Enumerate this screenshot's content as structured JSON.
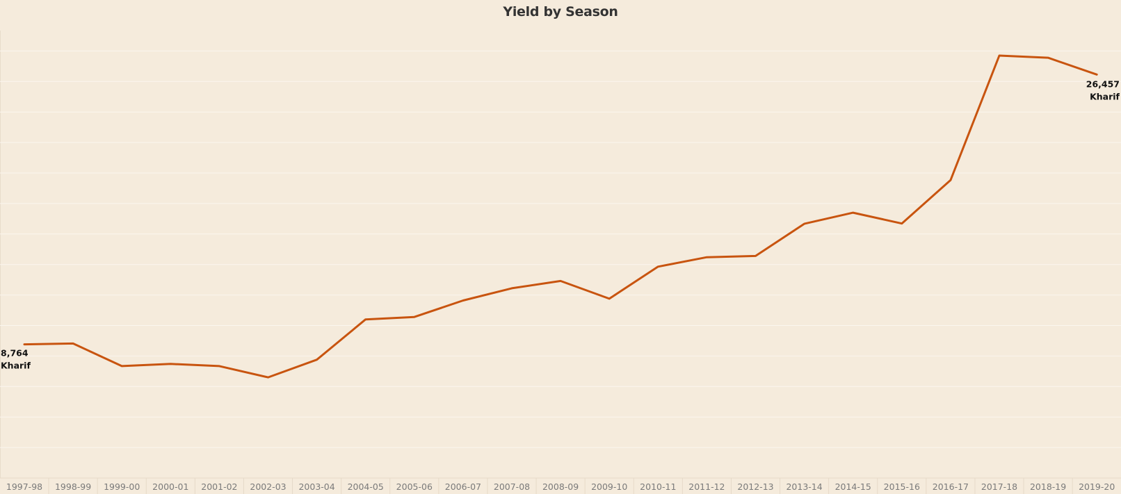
{
  "chart_data": {
    "type": "line",
    "title": "Yield by Season",
    "xlabel": "",
    "ylabel": "",
    "grid": true,
    "x": [
      "1997-98",
      "1998-99",
      "1999-00",
      "2000-01",
      "2001-02",
      "2002-03",
      "2003-04",
      "2004-05",
      "2005-06",
      "2006-07",
      "2007-08",
      "2008-09",
      "2009-10",
      "2010-11",
      "2011-12",
      "2012-13",
      "2013-14",
      "2014-15",
      "2015-16",
      "2016-17",
      "2017-18",
      "2018-19",
      "2019-20"
    ],
    "series": [
      {
        "name": "Kharif",
        "color": "#c8540f",
        "values": [
          8764,
          8820,
          7340,
          7480,
          7340,
          6600,
          7760,
          10400,
          10560,
          11640,
          12440,
          12920,
          11760,
          13860,
          14480,
          14560,
          16670,
          17400,
          16690,
          19530,
          27700,
          27560,
          26457
        ]
      }
    ],
    "ylim": [
      0,
      30000
    ],
    "annotations": [
      {
        "point_index": 0,
        "value_label": "8,764",
        "series_label": "Kharif"
      },
      {
        "point_index": 22,
        "value_label": "26,457",
        "series_label": "Kharif"
      }
    ]
  }
}
